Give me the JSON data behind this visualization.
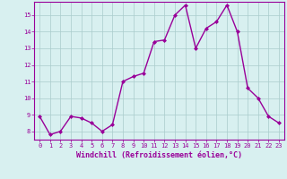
{
  "x": [
    0,
    1,
    2,
    3,
    4,
    5,
    6,
    7,
    8,
    9,
    10,
    11,
    12,
    13,
    14,
    15,
    16,
    17,
    18,
    19,
    20,
    21,
    22,
    23
  ],
  "y": [
    8.9,
    7.8,
    8.0,
    8.9,
    8.8,
    8.5,
    8.0,
    8.4,
    11.0,
    11.3,
    11.5,
    13.4,
    13.5,
    15.0,
    15.6,
    13.0,
    14.2,
    14.6,
    15.6,
    14.0,
    10.6,
    10.0,
    8.9,
    8.5
  ],
  "line_color": "#990099",
  "marker": "D",
  "marker_size": 2,
  "bg_color": "#d8f0f0",
  "grid_color": "#aacccc",
  "xlabel": "Windchill (Refroidissement éolien,°C)",
  "xlabel_color": "#990099",
  "tick_color": "#990099",
  "ylim": [
    7.5,
    15.8
  ],
  "xlim": [
    -0.5,
    23.5
  ],
  "yticks": [
    8,
    9,
    10,
    11,
    12,
    13,
    14,
    15
  ],
  "xticks": [
    0,
    1,
    2,
    3,
    4,
    5,
    6,
    7,
    8,
    9,
    10,
    11,
    12,
    13,
    14,
    15,
    16,
    17,
    18,
    19,
    20,
    21,
    22,
    23
  ],
  "linewidth": 1.0,
  "tick_fontsize": 5.0,
  "xlabel_fontsize": 6.0
}
